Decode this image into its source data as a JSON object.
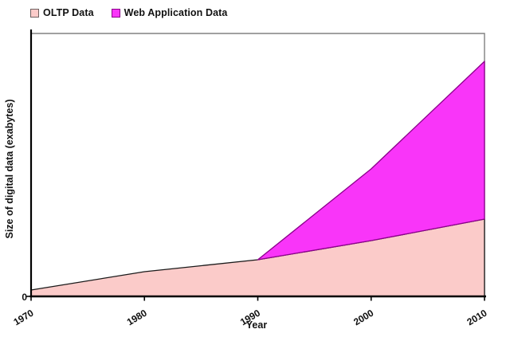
{
  "legend": {
    "items": [
      {
        "label": "OLTP Data",
        "color": "#FBCBC9",
        "border": "#6e6060"
      },
      {
        "label": "Web Application Data",
        "color": "#F935F9",
        "border": "#8B008B"
      }
    ]
  },
  "chart_data": {
    "type": "area",
    "stacked": true,
    "title": "",
    "xlabel": "Year",
    "ylabel": "Size of digital data (exabytes)",
    "x": [
      1970,
      1980,
      1990,
      2000,
      2010
    ],
    "x_tick_labels": [
      "1970",
      "1980",
      "1990",
      "2000",
      "2010"
    ],
    "y_zero_label": "0",
    "ylim": [
      0,
      330
    ],
    "y_axis_note": "y-axis unlabeled except 0; series values are relative units estimated from pixel heights",
    "grid": false,
    "legend_position": "top-left",
    "series": [
      {
        "name": "OLTP Data",
        "color": "#FBCBC9",
        "edge": "#1a1a1a",
        "values": [
          8,
          31,
          46,
          70,
          97
        ]
      },
      {
        "name": "Web Application Data",
        "color": "#F935F9",
        "edge": "#8B008B",
        "values": [
          0,
          0,
          0,
          90,
          198
        ]
      }
    ]
  }
}
